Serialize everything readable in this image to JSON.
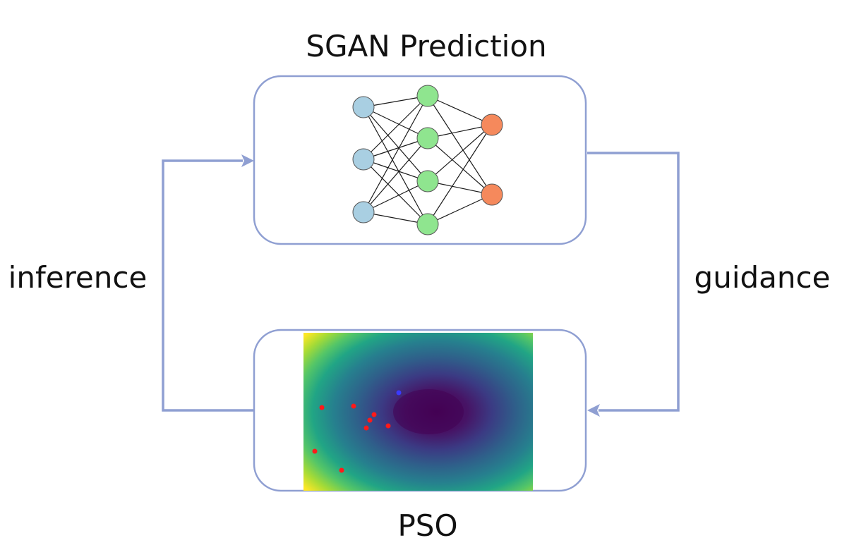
{
  "labels": {
    "top_box_title": "SGAN Prediction",
    "bottom_box_title": "PSO",
    "left_arrow_label": "inference",
    "right_arrow_label": "guidance"
  },
  "colors": {
    "box_border": "#8f9fd2",
    "arrow": "#8f9fd2",
    "input_node": "#a9cfe2",
    "hidden_node": "#8fe58f",
    "output_node": "#f5895c",
    "particle": "#ff1a1a",
    "best_particle": "#3a3aff"
  },
  "network": {
    "layer_sizes": [
      3,
      4,
      2
    ]
  }
}
